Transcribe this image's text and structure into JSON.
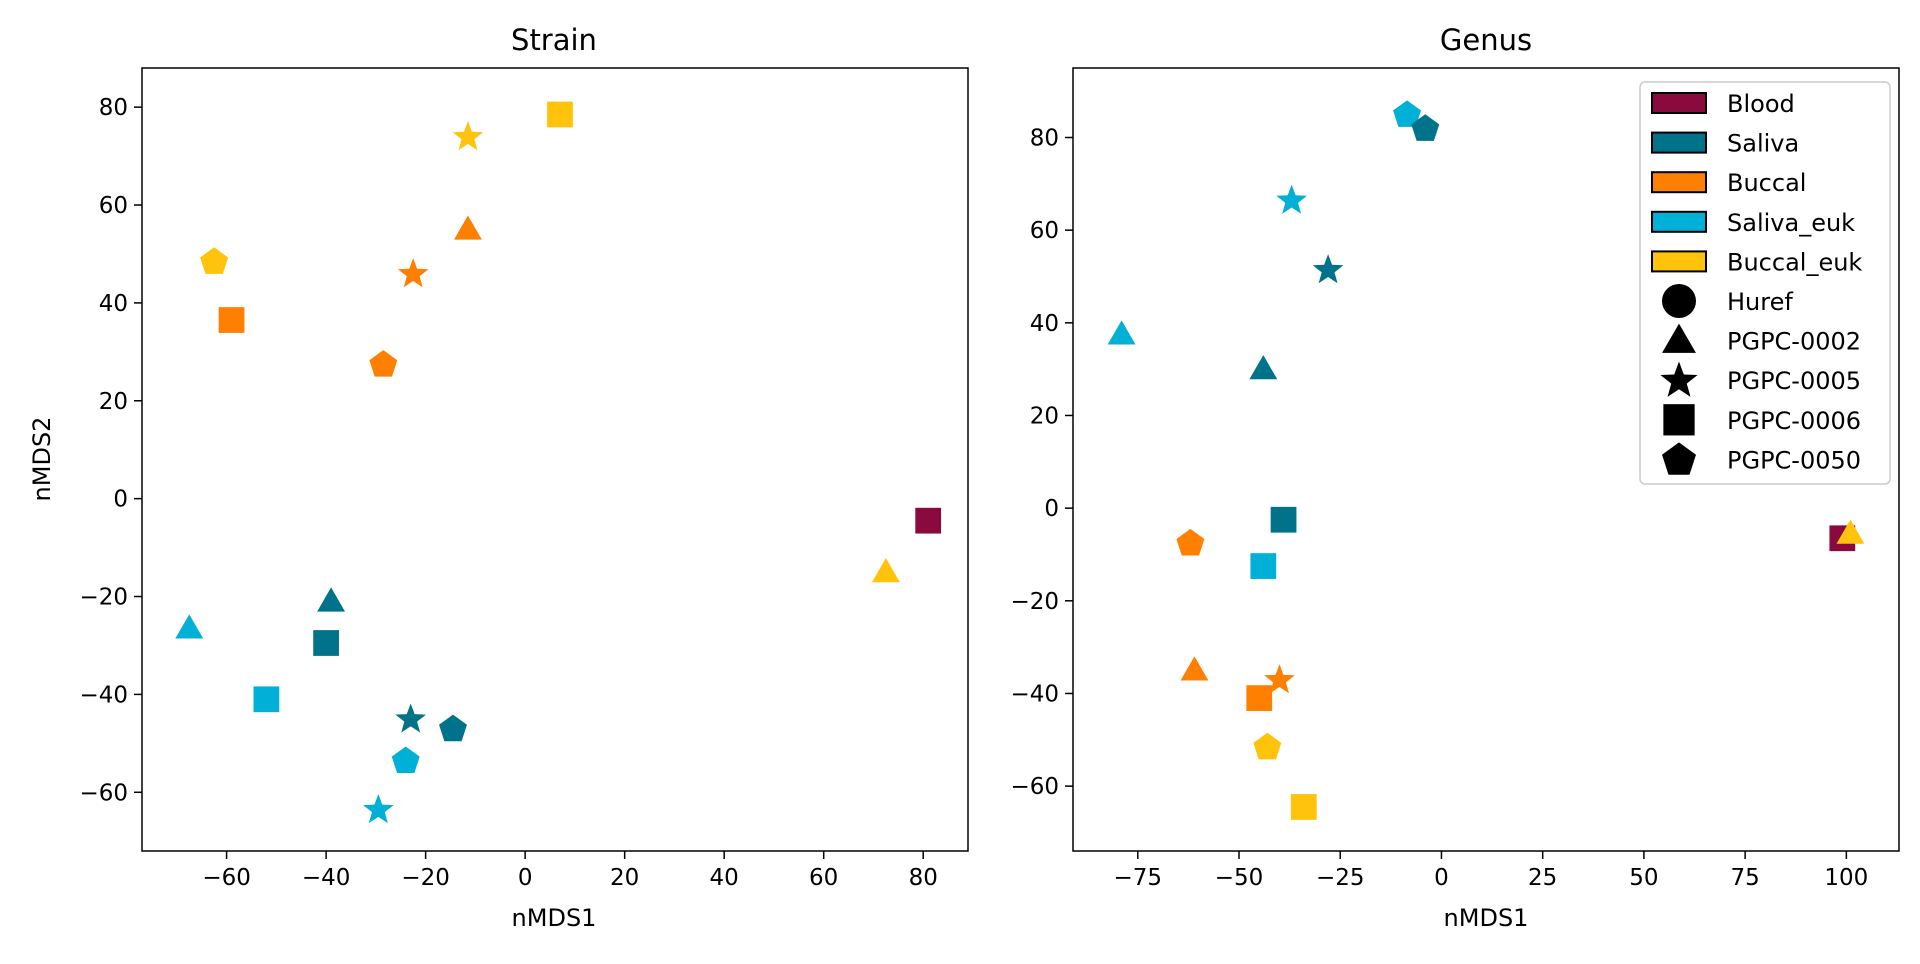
{
  "colors": {
    "Blood": "#8b0a3e",
    "Saliva": "#00738a",
    "Buccal": "#ff8000",
    "Saliva_euk": "#00b0d6",
    "Buccal_euk": "#ffc30b"
  },
  "markers": {
    "Huref": "circle",
    "PGPC-0002": "triangle",
    "PGPC-0005": "star",
    "PGPC-0006": "square",
    "PGPC-0050": "pentagon"
  },
  "legend": {
    "placement": "top-right",
    "sources": [
      "Blood",
      "Saliva",
      "Buccal",
      "Saliva_euk",
      "Buccal_euk"
    ],
    "individuals": [
      "Huref",
      "PGPC-0002",
      "PGPC-0005",
      "PGPC-0006",
      "PGPC-0050"
    ]
  },
  "chart_data": [
    {
      "type": "scatter",
      "title": "Strain",
      "xlabel": "nMDS1",
      "ylabel": "nMDS2",
      "xlim": [
        -77,
        89
      ],
      "ylim": [
        -72,
        88
      ],
      "xticks": [
        -60,
        -40,
        -20,
        0,
        20,
        40,
        60,
        80
      ],
      "yticks": [
        -60,
        -40,
        -20,
        0,
        20,
        40,
        60,
        80
      ],
      "grid": false,
      "points": [
        {
          "x": 81,
          "y": -4.5,
          "source": "Blood",
          "individual": "PGPC-0006"
        },
        {
          "x": 72.5,
          "y": -15,
          "source": "Buccal_euk",
          "individual": "PGPC-0002"
        },
        {
          "x": 7,
          "y": 78.5,
          "source": "Buccal_euk",
          "individual": "PGPC-0006"
        },
        {
          "x": -11.5,
          "y": 74,
          "source": "Buccal_euk",
          "individual": "PGPC-0005"
        },
        {
          "x": -62.5,
          "y": 48.5,
          "source": "Buccal_euk",
          "individual": "PGPC-0050"
        },
        {
          "x": -11.5,
          "y": 55,
          "source": "Buccal",
          "individual": "PGPC-0002"
        },
        {
          "x": -22.5,
          "y": 46,
          "source": "Buccal",
          "individual": "PGPC-0005"
        },
        {
          "x": -59,
          "y": 36.5,
          "source": "Buccal",
          "individual": "PGPC-0006"
        },
        {
          "x": -28.5,
          "y": 27.5,
          "source": "Buccal",
          "individual": "PGPC-0050"
        },
        {
          "x": -39,
          "y": -21,
          "source": "Saliva",
          "individual": "PGPC-0002"
        },
        {
          "x": -40,
          "y": -29.5,
          "source": "Saliva",
          "individual": "PGPC-0006"
        },
        {
          "x": -23,
          "y": -45,
          "source": "Saliva",
          "individual": "PGPC-0005"
        },
        {
          "x": -14.5,
          "y": -47,
          "source": "Saliva",
          "individual": "PGPC-0050"
        },
        {
          "x": -67.5,
          "y": -26.5,
          "source": "Saliva_euk",
          "individual": "PGPC-0002"
        },
        {
          "x": -52,
          "y": -41,
          "source": "Saliva_euk",
          "individual": "PGPC-0006"
        },
        {
          "x": -24,
          "y": -53.5,
          "source": "Saliva_euk",
          "individual": "PGPC-0050"
        },
        {
          "x": -29.5,
          "y": -63.5,
          "source": "Saliva_euk",
          "individual": "PGPC-0005"
        }
      ]
    },
    {
      "type": "scatter",
      "title": "Genus",
      "xlabel": "nMDS1",
      "ylabel": "",
      "xlim": [
        -91,
        113
      ],
      "ylim": [
        -74,
        95
      ],
      "xticks": [
        -75,
        -50,
        -25,
        0,
        25,
        50,
        75,
        100
      ],
      "yticks": [
        -60,
        -40,
        -20,
        0,
        20,
        40,
        60,
        80
      ],
      "grid": false,
      "points": [
        {
          "x": 99,
          "y": -6.5,
          "source": "Blood",
          "individual": "PGPC-0006"
        },
        {
          "x": 101,
          "y": -5.5,
          "source": "Buccal_euk",
          "individual": "PGPC-0002"
        },
        {
          "x": -8.5,
          "y": 85,
          "source": "Saliva_euk",
          "individual": "PGPC-0050"
        },
        {
          "x": -4,
          "y": 82,
          "source": "Saliva",
          "individual": "PGPC-0050"
        },
        {
          "x": -37,
          "y": 66.5,
          "source": "Saliva_euk",
          "individual": "PGPC-0005"
        },
        {
          "x": -28,
          "y": 51.5,
          "source": "Saliva",
          "individual": "PGPC-0005"
        },
        {
          "x": -79,
          "y": 37.5,
          "source": "Saliva_euk",
          "individual": "PGPC-0002"
        },
        {
          "x": -44,
          "y": 30,
          "source": "Saliva",
          "individual": "PGPC-0002"
        },
        {
          "x": -39,
          "y": -2.5,
          "source": "Saliva",
          "individual": "PGPC-0006"
        },
        {
          "x": -44,
          "y": -12.5,
          "source": "Saliva_euk",
          "individual": "PGPC-0006"
        },
        {
          "x": -62,
          "y": -7.5,
          "source": "Buccal",
          "individual": "PGPC-0050"
        },
        {
          "x": -61,
          "y": -35,
          "source": "Buccal",
          "individual": "PGPC-0002"
        },
        {
          "x": -40,
          "y": -37,
          "source": "Buccal",
          "individual": "PGPC-0005"
        },
        {
          "x": -45,
          "y": -41,
          "source": "Buccal",
          "individual": "PGPC-0006"
        },
        {
          "x": -43,
          "y": -51.5,
          "source": "Buccal_euk",
          "individual": "PGPC-0050"
        },
        {
          "x": -34,
          "y": -64.5,
          "source": "Buccal_euk",
          "individual": "PGPC-0006"
        }
      ]
    }
  ]
}
